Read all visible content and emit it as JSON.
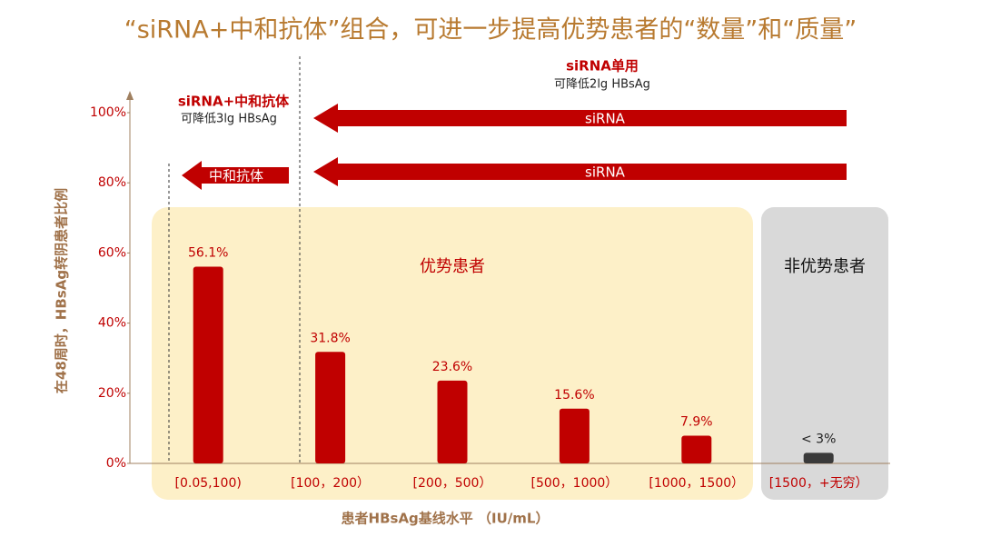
{
  "chart_data": {
    "type": "bar",
    "title": "“siRNA+中和抗体”组合，可进一步提高优势患者的“数量”和“质量”",
    "x_label": "患者HBsAg基线水平 （IU/mL）",
    "y_label": "在48周时，HBsAg转阴患者比例",
    "categories": [
      "[0.05,100)",
      "[100，200）",
      "[200，500）",
      "[500，1000）",
      "[1000，1500）",
      "[1500，+无穷）"
    ],
    "values": [
      56.1,
      31.8,
      23.6,
      15.6,
      7.9,
      3
    ],
    "value_labels": [
      "56.1%",
      "31.8%",
      "23.6%",
      "15.6%",
      "7.9%",
      "< 3%"
    ],
    "colors": [
      "#c00000",
      "#c00000",
      "#c00000",
      "#c00000",
      "#c00000",
      "#3a3a3a"
    ],
    "ylim": [
      0,
      100
    ],
    "yticks": [
      {
        "value": 0,
        "label": "0%"
      },
      {
        "value": 20,
        "label": "20%"
      },
      {
        "value": 40,
        "label": "40%"
      },
      {
        "value": 60,
        "label": "60%"
      },
      {
        "value": 80,
        "label": "80%"
      },
      {
        "value": 100,
        "label": "100%"
      }
    ],
    "grid": false,
    "annotations": {
      "combo_title": "siRNA+中和抗体",
      "combo_sub": "可降低3lg HBsAg",
      "sirna_title": "siRNA单用",
      "sirna_sub": "可降低2lg HBsAg",
      "arrow_sirna_1": "siRNA",
      "arrow_sirna_2": "siRNA",
      "arrow_antibody": "中和抗体",
      "favorable": "优势患者",
      "unfavorable": "非优势患者"
    }
  }
}
